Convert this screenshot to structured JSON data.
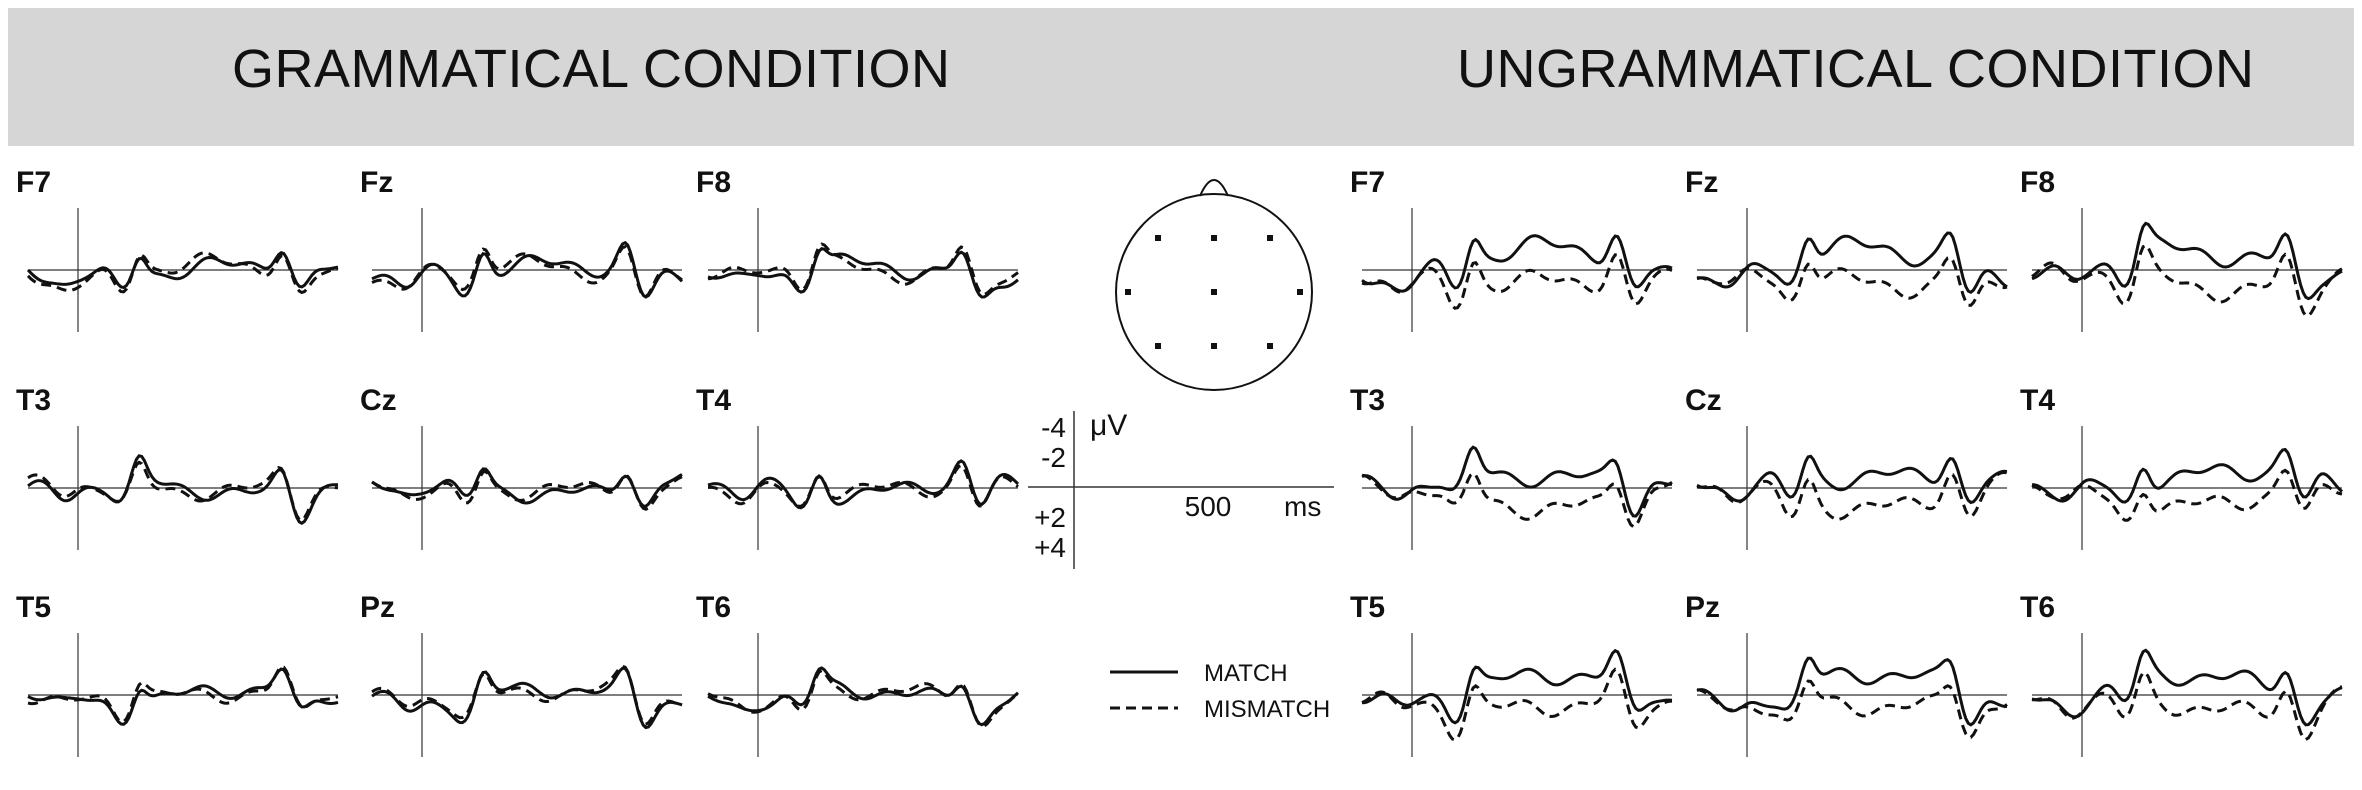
{
  "conditions": [
    {
      "id": "grammatical",
      "title": "GRAMMATICAL CONDITION"
    },
    {
      "id": "ungrammatical",
      "title": "UNGRAMMATICAL CONDITION"
    }
  ],
  "electrodes": [
    "F7",
    "Fz",
    "F8",
    "T3",
    "Cz",
    "T4",
    "T5",
    "Pz",
    "T6"
  ],
  "scale": {
    "unit_label": "μV",
    "time_unit": "ms",
    "time_tick": "500",
    "amplitude_ticks": [
      "-4",
      "-2",
      "+2",
      "+4"
    ]
  },
  "legend": [
    {
      "label": "MATCH",
      "style": "solid"
    },
    {
      "label": "MISMATCH",
      "style": "dashed"
    }
  ],
  "colors": {
    "banner": "#d6d6d6",
    "trace": "#111111",
    "axis": "#333333"
  }
}
